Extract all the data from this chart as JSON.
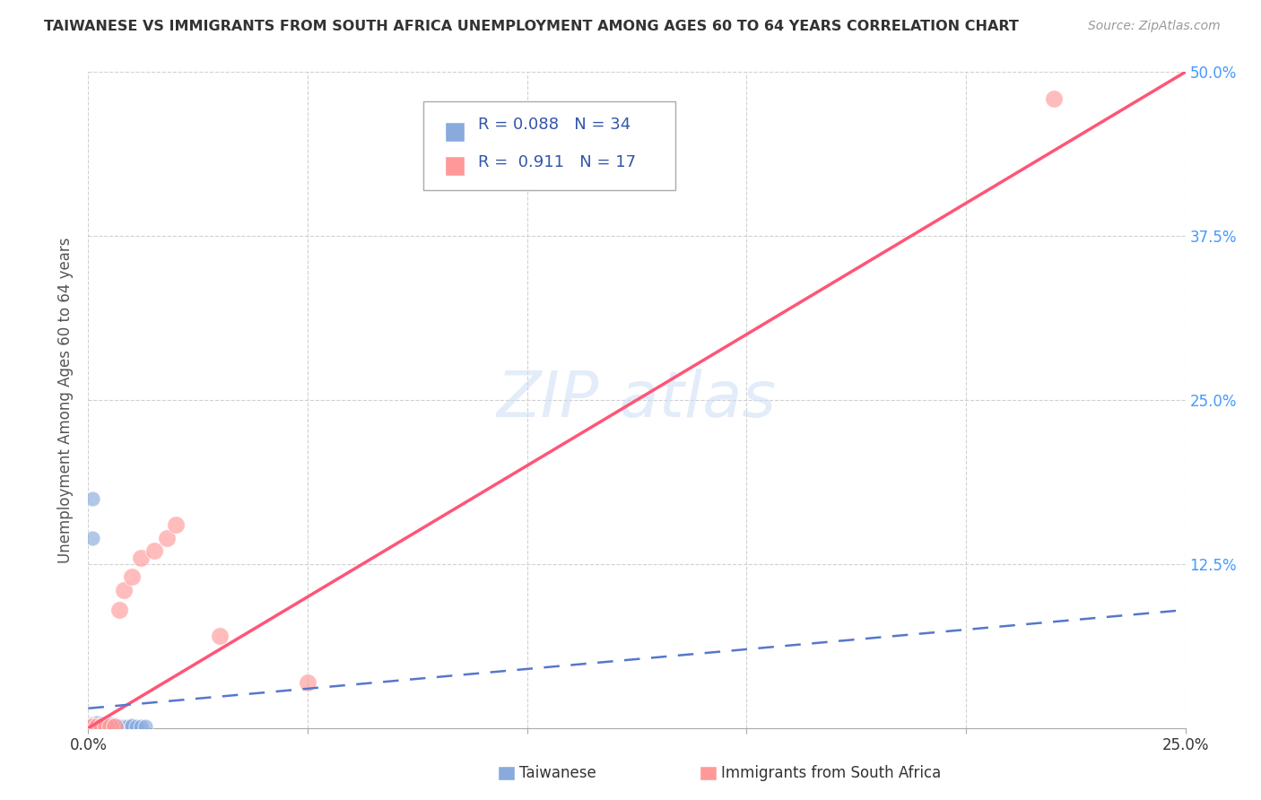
{
  "title": "TAIWANESE VS IMMIGRANTS FROM SOUTH AFRICA UNEMPLOYMENT AMONG AGES 60 TO 64 YEARS CORRELATION CHART",
  "source": "Source: ZipAtlas.com",
  "ylabel": "Unemployment Among Ages 60 to 64 years",
  "legend_bottom": [
    "Taiwanese",
    "Immigrants from South Africa"
  ],
  "r_taiwanese": 0.088,
  "n_taiwanese": 34,
  "r_sa": 0.911,
  "n_sa": 17,
  "xlim": [
    0.0,
    0.25
  ],
  "ylim": [
    0.0,
    0.5
  ],
  "xticks": [
    0.0,
    0.05,
    0.1,
    0.15,
    0.2,
    0.25
  ],
  "yticks": [
    0.0,
    0.125,
    0.25,
    0.375,
    0.5
  ],
  "xticklabels": [
    "0.0%",
    "",
    "",
    "",
    "",
    "25.0%"
  ],
  "yticklabels_right": [
    "",
    "12.5%",
    "25.0%",
    "37.5%",
    "50.0%"
  ],
  "color_taiwanese": "#88AADD",
  "color_sa": "#FF9999",
  "color_trend_taiwanese": "#5577CC",
  "color_trend_sa": "#FF5577",
  "background_color": "#FFFFFF",
  "taiwanese_x": [
    0.001,
    0.001,
    0.001,
    0.001,
    0.001,
    0.001,
    0.001,
    0.001,
    0.002,
    0.002,
    0.002,
    0.002,
    0.002,
    0.003,
    0.003,
    0.003,
    0.004,
    0.004,
    0.004,
    0.005,
    0.005,
    0.005,
    0.006,
    0.006,
    0.007,
    0.008,
    0.009,
    0.01,
    0.01,
    0.011,
    0.012,
    0.013,
    0.001,
    0.001
  ],
  "taiwanese_y": [
    0.001,
    0.001,
    0.001,
    0.001,
    0.001,
    0.002,
    0.002,
    0.003,
    0.001,
    0.001,
    0.002,
    0.003,
    0.004,
    0.001,
    0.002,
    0.003,
    0.001,
    0.002,
    0.003,
    0.001,
    0.002,
    0.003,
    0.001,
    0.002,
    0.001,
    0.001,
    0.001,
    0.001,
    0.002,
    0.001,
    0.001,
    0.001,
    0.175,
    0.145
  ],
  "sa_x": [
    0.001,
    0.001,
    0.002,
    0.003,
    0.004,
    0.005,
    0.006,
    0.007,
    0.008,
    0.01,
    0.012,
    0.015,
    0.018,
    0.02,
    0.03,
    0.05,
    0.22
  ],
  "sa_y": [
    0.001,
    0.001,
    0.001,
    0.001,
    0.001,
    0.001,
    0.001,
    0.09,
    0.105,
    0.115,
    0.13,
    0.135,
    0.145,
    0.155,
    0.07,
    0.035,
    0.48
  ]
}
